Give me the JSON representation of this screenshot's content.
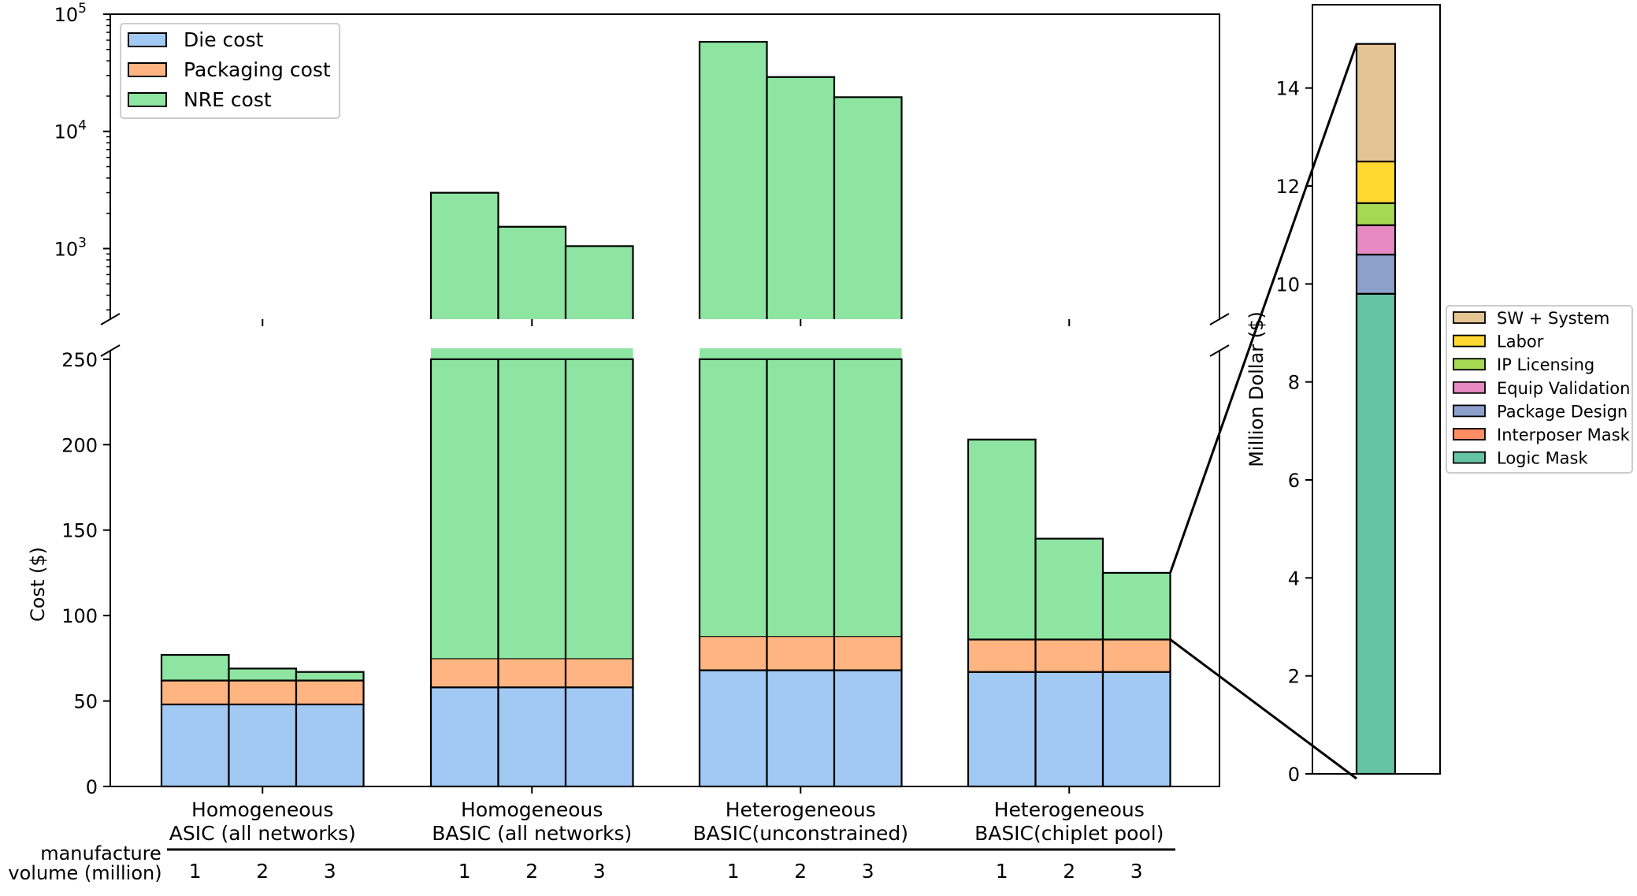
{
  "chart_data": [
    {
      "type": "bar",
      "stacked": true,
      "y_axis": "broken",
      "groups": [
        "Homogeneous ASIC (all networks)",
        "Homogeneous BASIC (all networks)",
        "Heterogeneous BASIC(unconstrained)",
        "Heterogeneous BASIC(chiplet pool)"
      ],
      "group_label_lines": [
        [
          "Homogeneous",
          "ASIC (all networks)"
        ],
        [
          "Homogeneous",
          "BASIC (all networks)"
        ],
        [
          "Heterogeneous",
          "BASIC(unconstrained)"
        ],
        [
          "Heterogeneous",
          "BASIC(chiplet pool)"
        ]
      ],
      "volume_label_lines": [
        "manufacture",
        "volume (million)"
      ],
      "volumes": [
        "1",
        "2",
        "3"
      ],
      "ylabel": "Cost ($)",
      "lower_ylim": [
        0,
        255
      ],
      "lower_yticks": [
        "0",
        "50",
        "100",
        "150",
        "200",
        "250"
      ],
      "upper_ylim_log": [
        250,
        100000
      ],
      "upper_yticks": [
        {
          "base": "10",
          "exp": "3",
          "value": 1000
        },
        {
          "base": "10",
          "exp": "4",
          "value": 10000
        },
        {
          "base": "10",
          "exp": "5",
          "value": 100000
        }
      ],
      "legend": {
        "position": "top-left",
        "entries": [
          "Die cost",
          "Packaging cost",
          "NRE cost"
        ]
      },
      "colors": {
        "die": "#a1c9f4",
        "packaging": "#ffb482",
        "nre": "#8de5a1"
      },
      "series": [
        {
          "name": "Die cost",
          "values": [
            [
              48,
              48,
              48
            ],
            [
              58,
              58,
              58
            ],
            [
              68,
              68,
              68
            ],
            [
              67,
              67,
              67
            ]
          ]
        },
        {
          "name": "Packaging cost",
          "values": [
            [
              14,
              14,
              14
            ],
            [
              17,
              17,
              17
            ],
            [
              20,
              20,
              20
            ],
            [
              19,
              19,
              19
            ]
          ]
        },
        {
          "name": "NRE cost",
          "values": [
            [
              15,
              7,
              5
            ],
            [
              2920,
              1460,
              975
            ],
            [
              58000,
              29000,
              19500
            ],
            [
              117,
              59,
              39
            ]
          ]
        }
      ]
    },
    {
      "type": "bar",
      "stacked": true,
      "ylabel": "Million Dollar ($)",
      "ylim": [
        0,
        15.7
      ],
      "yticks": [
        "0",
        "2",
        "4",
        "6",
        "8",
        "10",
        "12",
        "14"
      ],
      "legend": {
        "position": "right",
        "entries": [
          "SW + System",
          "Labor",
          "IP Licensing",
          "Equip Validation",
          "Package Design",
          "Interposer Mask",
          "Logic Mask"
        ]
      },
      "series": [
        {
          "name": "Logic Mask",
          "value": 9.8,
          "color": "#64c4a4"
        },
        {
          "name": "Interposer Mask",
          "value": 0.0,
          "color": "#fc8d62"
        },
        {
          "name": "Package Design",
          "value": 0.8,
          "color": "#8da0cb"
        },
        {
          "name": "Equip Validation",
          "value": 0.6,
          "color": "#e78ac3"
        },
        {
          "name": "IP Licensing",
          "value": 0.45,
          "color": "#a6d854"
        },
        {
          "name": "Labor",
          "value": 0.85,
          "color": "#ffd92f"
        },
        {
          "name": "SW + System",
          "value": 2.4,
          "color": "#e5c494"
        }
      ]
    }
  ]
}
